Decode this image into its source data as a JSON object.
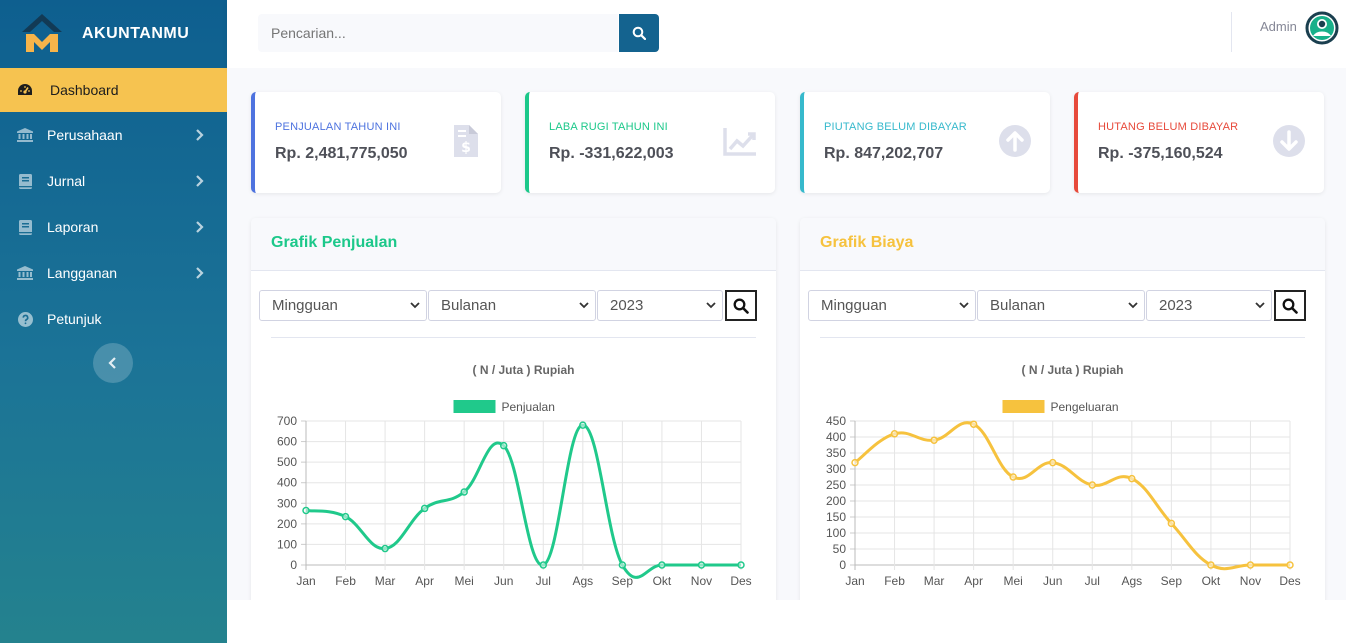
{
  "brand": {
    "name": "AKUNTANMU"
  },
  "sidebar": {
    "items": [
      {
        "label": "Dashboard",
        "icon": "tachometer-icon",
        "active": true
      },
      {
        "label": "Perusahaan",
        "icon": "bank-icon",
        "has_submenu": true
      },
      {
        "label": "Jurnal",
        "icon": "book-icon",
        "has_submenu": true
      },
      {
        "label": "Laporan",
        "icon": "book-icon",
        "has_submenu": true
      },
      {
        "label": "Langganan",
        "icon": "bank-icon",
        "has_submenu": true
      },
      {
        "label": "Petunjuk",
        "icon": "question-circle-icon",
        "has_submenu": false
      }
    ],
    "toggle_icon": "chevron-left-icon"
  },
  "topbar": {
    "search_placeholder": "Pencarian...",
    "search_icon": "search-icon",
    "user_name": "Admin",
    "avatar_icon": "user-circle-icon"
  },
  "stats": [
    {
      "label": "PENJUALAN TAHUN INI",
      "value": "Rp. 2,481,775,050",
      "color": "#4e73df",
      "icon": "file-invoice-dollar-icon"
    },
    {
      "label": "LABA RUGI TAHUN INI",
      "value": "Rp. -331,622,003",
      "color": "#1cc88a",
      "icon": "chart-area-icon"
    },
    {
      "label": "PIUTANG BELUM DIBAYAR",
      "value": "Rp. 847,202,707",
      "color": "#36b9cc",
      "icon": "arrow-circle-up-icon"
    },
    {
      "label": "HUTANG BELUM DIBAYAR",
      "value": "Rp. -375,160,524",
      "color": "#e74a3b",
      "icon": "arrow-circle-down-icon"
    }
  ],
  "panels": [
    {
      "title": "Grafik Penjualan",
      "title_color": "#1cc88a",
      "filters": {
        "period": "Mingguan",
        "granularity": "Bulanan",
        "year": "2023"
      }
    },
    {
      "title": "Grafik Biaya",
      "title_color": "#f6c23e",
      "filters": {
        "period": "Mingguan",
        "granularity": "Bulanan",
        "year": "2023"
      }
    }
  ],
  "chart_data": [
    {
      "type": "line",
      "title": "( N / Juta ) Rupiah",
      "categories": [
        "Jan",
        "Feb",
        "Mar",
        "Apr",
        "Mei",
        "Jun",
        "Jul",
        "Ags",
        "Sep",
        "Okt",
        "Nov",
        "Des"
      ],
      "series": [
        {
          "name": "Penjualan",
          "color": "#20c98b",
          "values": [
            265,
            235,
            80,
            275,
            355,
            580,
            0,
            680,
            0,
            0,
            0,
            0
          ]
        }
      ],
      "ylim": [
        0,
        700
      ],
      "yticks": [
        0,
        100,
        200,
        300,
        400,
        500,
        600,
        700
      ],
      "grid": true,
      "legend": "top"
    },
    {
      "type": "line",
      "title": "( N / Juta ) Rupiah",
      "categories": [
        "Jan",
        "Feb",
        "Mar",
        "Apr",
        "Mei",
        "Jun",
        "Jul",
        "Ags",
        "Sep",
        "Okt",
        "Nov",
        "Des"
      ],
      "series": [
        {
          "name": "Pengeluaran",
          "color": "#f6c23e",
          "values": [
            320,
            410,
            390,
            440,
            275,
            320,
            250,
            270,
            130,
            0,
            0,
            0
          ]
        }
      ],
      "ylim": [
        0,
        450
      ],
      "yticks": [
        0,
        50,
        100,
        150,
        200,
        250,
        300,
        350,
        400,
        450
      ],
      "grid": true,
      "legend": "top"
    }
  ]
}
